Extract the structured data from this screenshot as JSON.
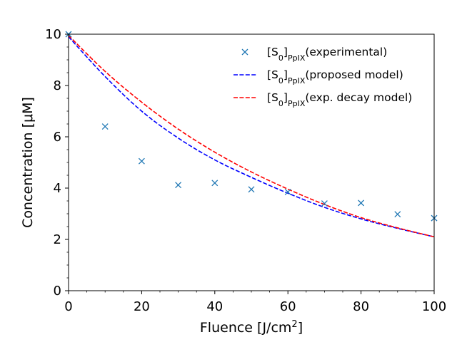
{
  "chart_data": {
    "type": "line",
    "xlabel": {
      "text": "Fluence [J/cm",
      "sup": "2",
      "close": "]"
    },
    "ylabel": "Concentration [μM]",
    "xlim": [
      0,
      100
    ],
    "ylim": [
      0,
      10
    ],
    "xticks": [
      0,
      20,
      40,
      60,
      80,
      100
    ],
    "yticks": [
      0,
      2,
      4,
      6,
      8,
      10
    ],
    "grid": false,
    "legend_position": "top-right",
    "scatter": {
      "name": {
        "base": "[S",
        "sub1": "0",
        "mid": "]",
        "sub2": "PpIX",
        "tail": "(experimental)"
      },
      "color": "#1f77b4",
      "marker": "x",
      "x": [
        0,
        10,
        20,
        30,
        40,
        50,
        60,
        70,
        80,
        90,
        100
      ],
      "y": [
        10.0,
        6.4,
        5.05,
        4.12,
        4.2,
        3.95,
        3.85,
        3.4,
        3.42,
        2.98,
        2.83
      ]
    },
    "series": [
      {
        "name": {
          "base": "[S",
          "sub1": "0",
          "mid": "]",
          "sub2": "PpIX",
          "tail": "(proposed model)"
        },
        "color": "#0000ff",
        "style": "dashed",
        "x": [
          0,
          10,
          20,
          30,
          40,
          50,
          60,
          70,
          80,
          90,
          100
        ],
        "y": [
          9.9,
          8.35,
          7.0,
          5.95,
          5.1,
          4.42,
          3.8,
          3.25,
          2.8,
          2.43,
          2.1
        ]
      },
      {
        "name": {
          "base": "[S",
          "sub1": "0",
          "mid": "]",
          "sub2": "PpIX",
          "tail": "(exp. decay model)"
        },
        "color": "#ff0000",
        "style": "dashed",
        "x": [
          0,
          10,
          20,
          30,
          40,
          50,
          60,
          70,
          80,
          90,
          100
        ],
        "y": [
          9.95,
          8.55,
          7.35,
          6.3,
          5.4,
          4.63,
          3.96,
          3.36,
          2.85,
          2.45,
          2.1
        ]
      }
    ]
  }
}
